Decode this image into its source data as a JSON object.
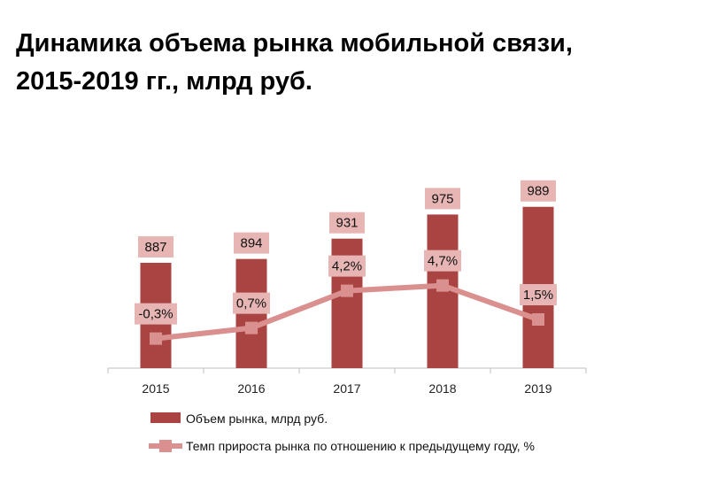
{
  "title": {
    "line1": "Динамика объема рынка мобильной связи,",
    "line2": "2015-2019 гг., млрд руб."
  },
  "colors": {
    "bar": "#a94442",
    "line": "#d9908f",
    "label_box": "#e6b5b4",
    "axis": "#bfbfbf"
  },
  "chart_data": {
    "type": "bar",
    "categories": [
      "2015",
      "2016",
      "2017",
      "2018",
      "2019"
    ],
    "series": [
      {
        "name": "Объем рынка,  млрд руб.",
        "type": "bar",
        "values": [
          887,
          894,
          931,
          975,
          989
        ],
        "labels": [
          "887",
          "894",
          "931",
          "975",
          "989"
        ]
      },
      {
        "name": "Темп прироста рынка по отношению к предыдущему году, %",
        "type": "line",
        "values": [
          -0.3,
          0.7,
          4.2,
          4.7,
          1.5
        ],
        "labels": [
          "-0,3%",
          "0,7%",
          "4,2%",
          "4,7%",
          "1,5%"
        ]
      }
    ],
    "legend_position": "bottom",
    "grid": false
  }
}
